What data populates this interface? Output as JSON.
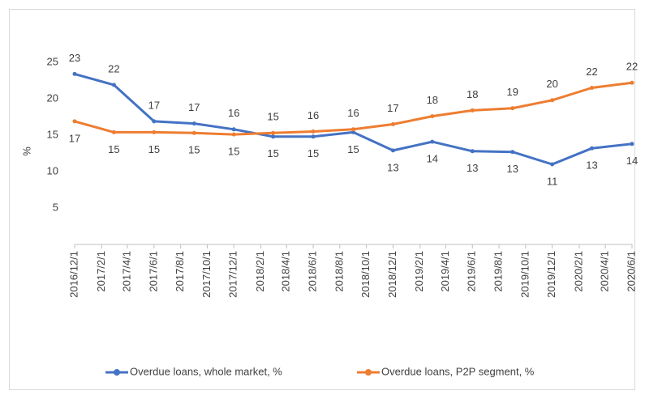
{
  "chart_data": {
    "type": "line",
    "y_label": "%",
    "x": [
      "2016/12/1",
      "2017/3/1",
      "2017/6/1",
      "2017/9/1",
      "2017/12/1",
      "2018/3/1",
      "2018/6/1",
      "2018/9/1",
      "2018/12/1",
      "2019/3/1",
      "2019/6/1",
      "2019/9/1",
      "2019/12/1",
      "2020/3/1",
      "2020/6/1"
    ],
    "series": [
      {
        "name": "Overdue loans, whole market, %",
        "color": "#4472c4",
        "values": [
          23.4,
          21.9,
          16.9,
          16.6,
          15.8,
          14.8,
          14.8,
          15.4,
          12.9,
          14.1,
          12.8,
          12.7,
          11.0,
          13.2,
          13.8
        ],
        "value_labels": [
          23,
          22,
          17,
          17,
          16,
          15,
          15,
          15,
          13,
          14,
          13,
          13,
          11,
          13,
          14
        ]
      },
      {
        "name": "Overdue loans, P2P segment, %",
        "color": "#ed7d31",
        "values": [
          16.9,
          15.4,
          15.4,
          15.3,
          15.1,
          15.3,
          15.5,
          15.8,
          16.5,
          17.6,
          18.4,
          18.7,
          19.8,
          21.5,
          22.2
        ],
        "value_labels": [
          17,
          15,
          15,
          15,
          15,
          15,
          16,
          16,
          17,
          18,
          18,
          19,
          20,
          22,
          22
        ]
      }
    ],
    "xlim": [
      "2016/12/1",
      "2020/6/1"
    ],
    "xticks": [
      "2016/12/1",
      "2017/2/1",
      "2017/4/1",
      "2017/6/1",
      "2017/8/1",
      "2017/10/1",
      "2017/12/1",
      "2018/2/1",
      "2018/4/1",
      "2018/6/1",
      "2018/8/1",
      "2018/10/1",
      "2018/12/1",
      "2019/2/1",
      "2019/4/1",
      "2019/6/1",
      "2019/8/1",
      "2019/10/1",
      "2019/12/1",
      "2020/2/1",
      "2020/4/1",
      "2020/6/1"
    ],
    "ylim": [
      0,
      30
    ],
    "yticks": [
      5,
      10,
      15,
      20,
      25
    ],
    "grid": false,
    "legend": "bottom"
  }
}
